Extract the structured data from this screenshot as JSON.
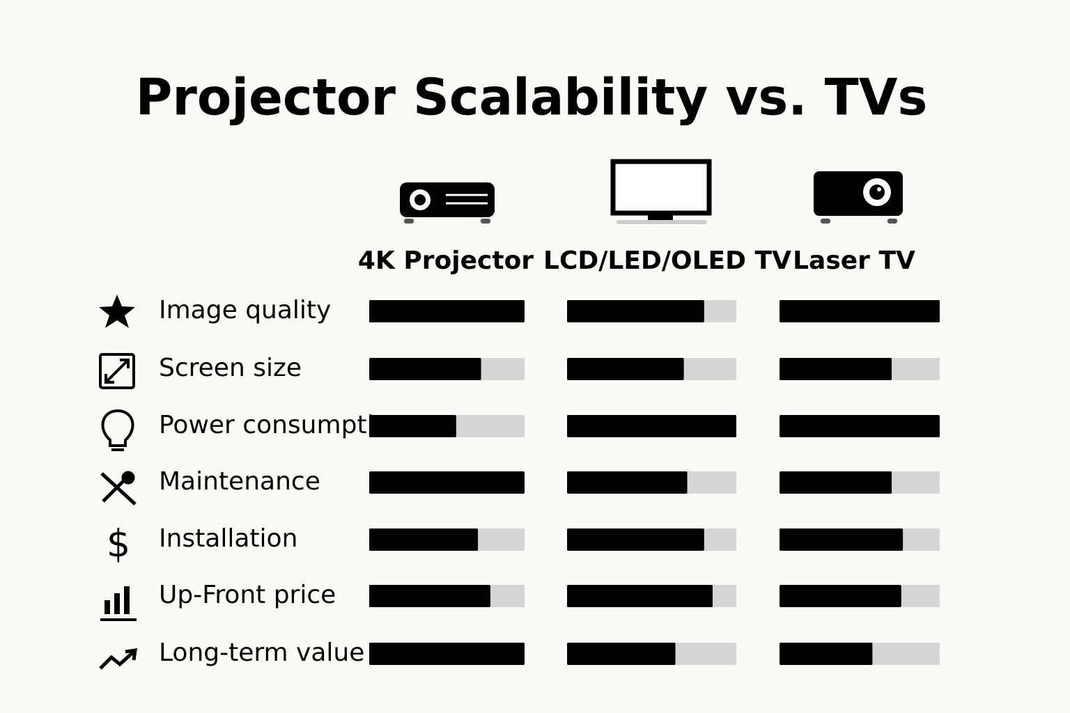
{
  "chart_data": {
    "type": "bar",
    "title": "Projector Scalability vs. TVs",
    "categories": [
      "Image quality",
      "Screen size",
      "Power consumption",
      "Maintenance",
      "Installation",
      "Up-Front price",
      "Long-term value"
    ],
    "series": [
      {
        "name": "4K Projector",
        "color": "#000000",
        "values": [
          100,
          72,
          56,
          100,
          70,
          78,
          100
        ]
      },
      {
        "name": "LCD/LED/OLED TV",
        "color": "#000000",
        "values": [
          81,
          69,
          100,
          71,
          81,
          86,
          64
        ]
      },
      {
        "name": "Laser TV",
        "color": "#000000",
        "values": [
          100,
          70,
          100,
          70,
          77,
          76,
          58
        ]
      }
    ],
    "xlim": [
      0,
      100
    ],
    "track_color": "#d6d6d6"
  }
}
